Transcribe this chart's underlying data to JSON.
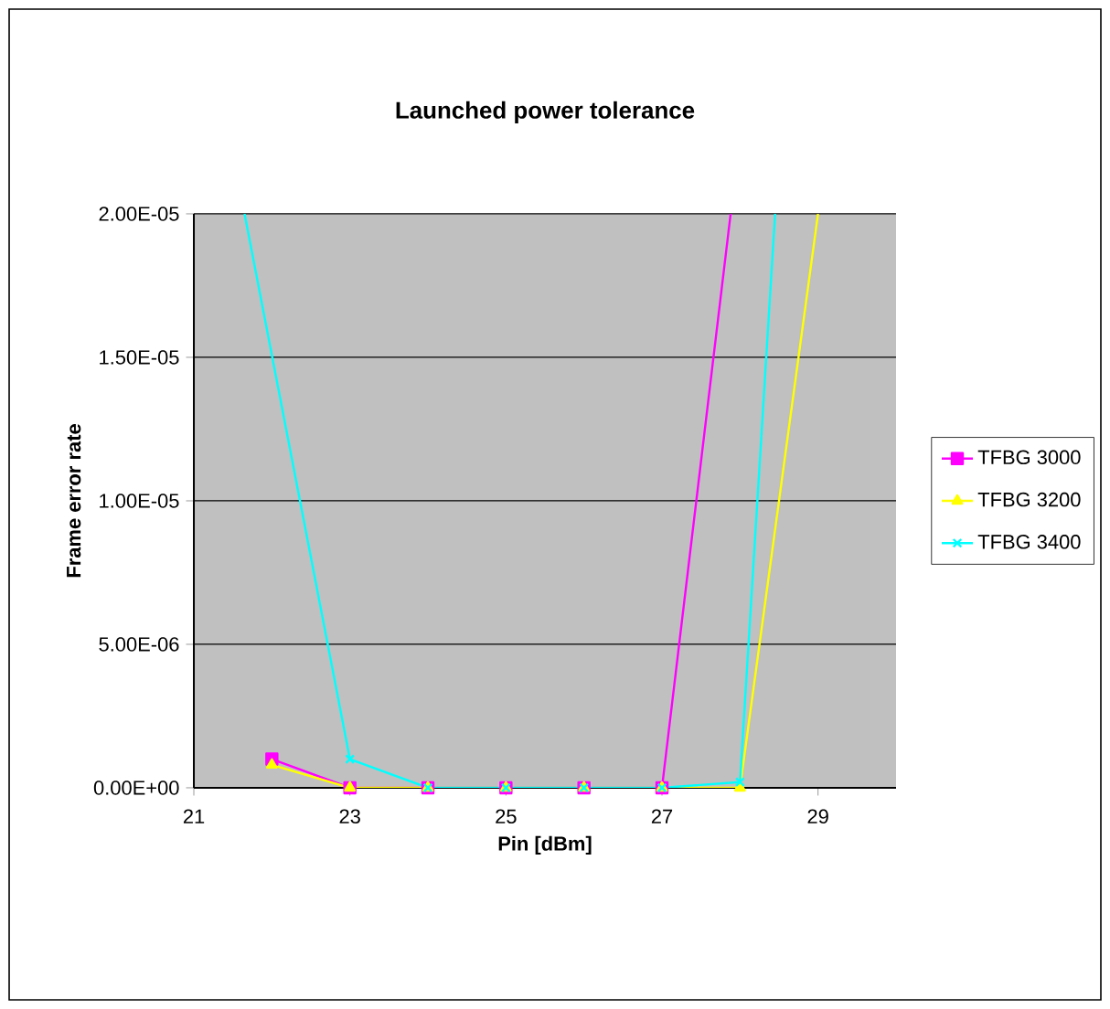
{
  "chart_data": {
    "type": "line",
    "title": "Launched power tolerance",
    "xlabel": "Pin [dBm]",
    "ylabel": "Frame error rate",
    "xlim": [
      21,
      30
    ],
    "xticks": [
      21,
      23,
      25,
      27,
      29
    ],
    "ylim": [
      0,
      2e-05
    ],
    "yticks": [
      {
        "value": 0,
        "label": "0.00E+00"
      },
      {
        "value": 5e-06,
        "label": "5.00E-06"
      },
      {
        "value": 1e-05,
        "label": "1.00E-05"
      },
      {
        "value": 1.5e-05,
        "label": "1.50E-05"
      },
      {
        "value": 2e-05,
        "label": "2.00E-05"
      }
    ],
    "grid": "y",
    "legend": "right",
    "series": [
      {
        "name": "TFBG 3000",
        "color": "#ff00ff",
        "marker": "square",
        "x": [
          22,
          23,
          24,
          25,
          26,
          27,
          27.88
        ],
        "values": [
          1e-06,
          0,
          0,
          0,
          0,
          0,
          2e-05
        ]
      },
      {
        "name": "TFBG 3200",
        "color": "#ffff00",
        "marker": "triangle",
        "x": [
          22,
          23,
          24,
          25,
          26,
          27,
          28,
          29
        ],
        "values": [
          8e-07,
          0,
          0,
          0,
          0,
          0,
          0,
          2e-05
        ]
      },
      {
        "name": "TFBG 3400",
        "color": "#00ffff",
        "marker": "cross",
        "x": [
          21.65,
          23,
          24,
          25,
          26,
          27,
          28,
          28.45
        ],
        "values": [
          2e-05,
          1e-06,
          0,
          0,
          0,
          0,
          2e-07,
          2e-05
        ]
      }
    ]
  }
}
